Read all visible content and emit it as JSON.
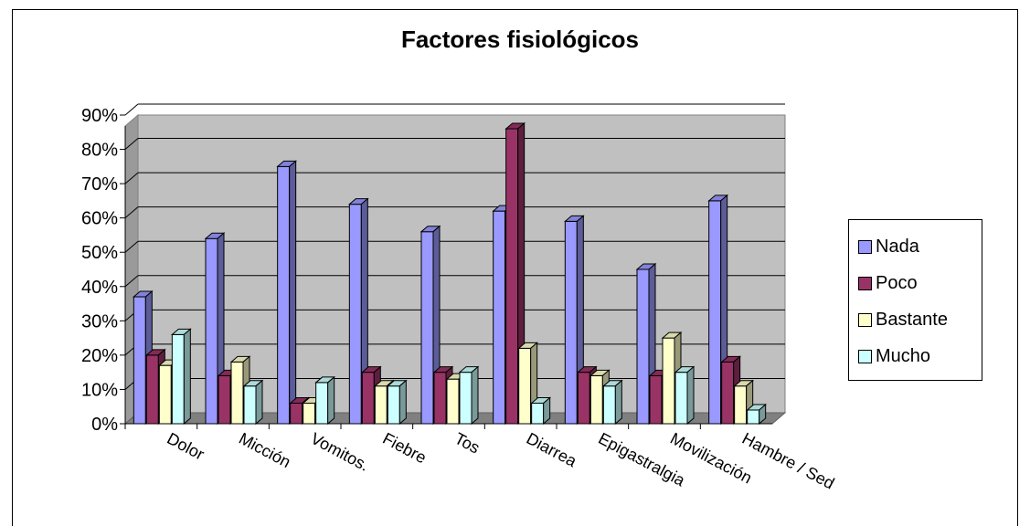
{
  "chart_data": {
    "type": "bar",
    "title": "Factores fisiológicos",
    "categories": [
      "Dolor",
      "Micción",
      "Vomitos.",
      "Fiebre",
      "Tos",
      "Diarrea",
      "Epigastralgia",
      "Movilización",
      "Hambre / Sed"
    ],
    "series": [
      {
        "name": "Nada",
        "color": "#9999ff",
        "values": [
          37,
          54,
          75,
          64,
          56,
          62,
          59,
          45,
          65
        ]
      },
      {
        "name": "Poco",
        "color": "#993366",
        "values": [
          20,
          14,
          6,
          15,
          15,
          86,
          15,
          14,
          18
        ]
      },
      {
        "name": "Bastante",
        "color": "#ffffcc",
        "values": [
          17,
          18,
          6,
          11,
          13,
          22,
          14,
          25,
          11
        ]
      },
      {
        "name": "Mucho",
        "color": "#ccffff",
        "values": [
          26,
          11,
          12,
          11,
          15,
          6,
          11,
          15,
          4
        ]
      }
    ],
    "ylim": [
      0,
      90
    ],
    "yticks": [
      "0%",
      "10%",
      "20%",
      "30%",
      "40%",
      "50%",
      "60%",
      "70%",
      "80%",
      "90%"
    ],
    "grid": true,
    "legend_position": "right",
    "plot_background": "#c0c0c0"
  }
}
